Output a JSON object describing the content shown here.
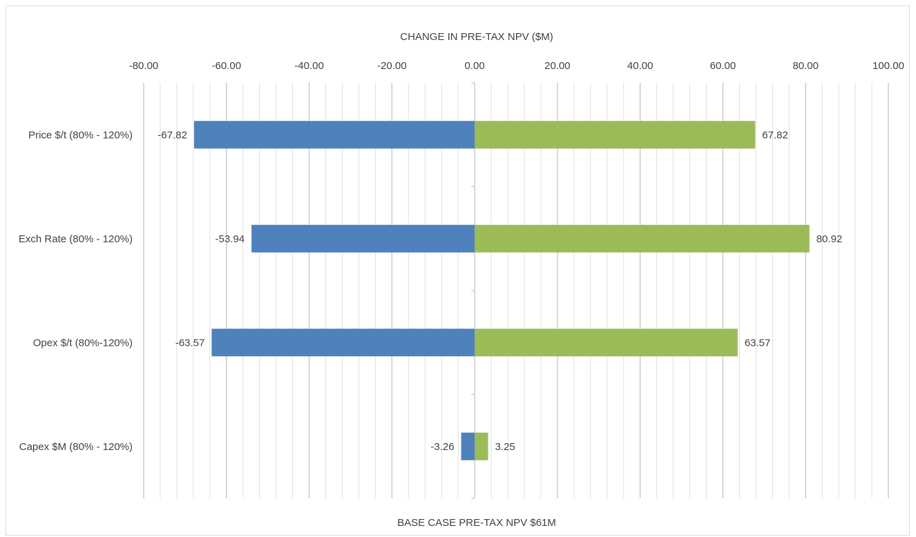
{
  "chart_data": {
    "type": "bar",
    "orientation": "horizontal",
    "title": "CHANGE IN PRE-TAX NPV ($M)",
    "xlabel": "BASE CASE PRE-TAX NPV $61M",
    "xlim": [
      -80,
      100
    ],
    "xticks": [
      "-80.00",
      "-60.00",
      "-40.00",
      "-20.00",
      "0.00",
      "20.00",
      "40.00",
      "60.00",
      "80.00",
      "100.00"
    ],
    "xtick_values": [
      -80,
      -60,
      -40,
      -20,
      0,
      20,
      40,
      60,
      80,
      100
    ],
    "categories": [
      "Price $/t (80% - 120%)",
      "Exch Rate (80% - 120%)",
      "Opex $/t (80%-120%)",
      "Capex $M (80% - 120%)"
    ],
    "series": [
      {
        "color": "#4f81bd",
        "values": [
          -67.82,
          -53.94,
          -63.57,
          -3.26
        ],
        "labels": [
          "-67.82",
          "-53.94",
          "-63.57",
          "-3.26"
        ]
      },
      {
        "color": "#9bbb59",
        "values": [
          67.82,
          80.92,
          63.57,
          3.25
        ],
        "labels": [
          "67.82",
          "80.92",
          "63.57",
          "3.25"
        ]
      }
    ],
    "grid": true,
    "gridline_color": "#d9d9d9"
  }
}
